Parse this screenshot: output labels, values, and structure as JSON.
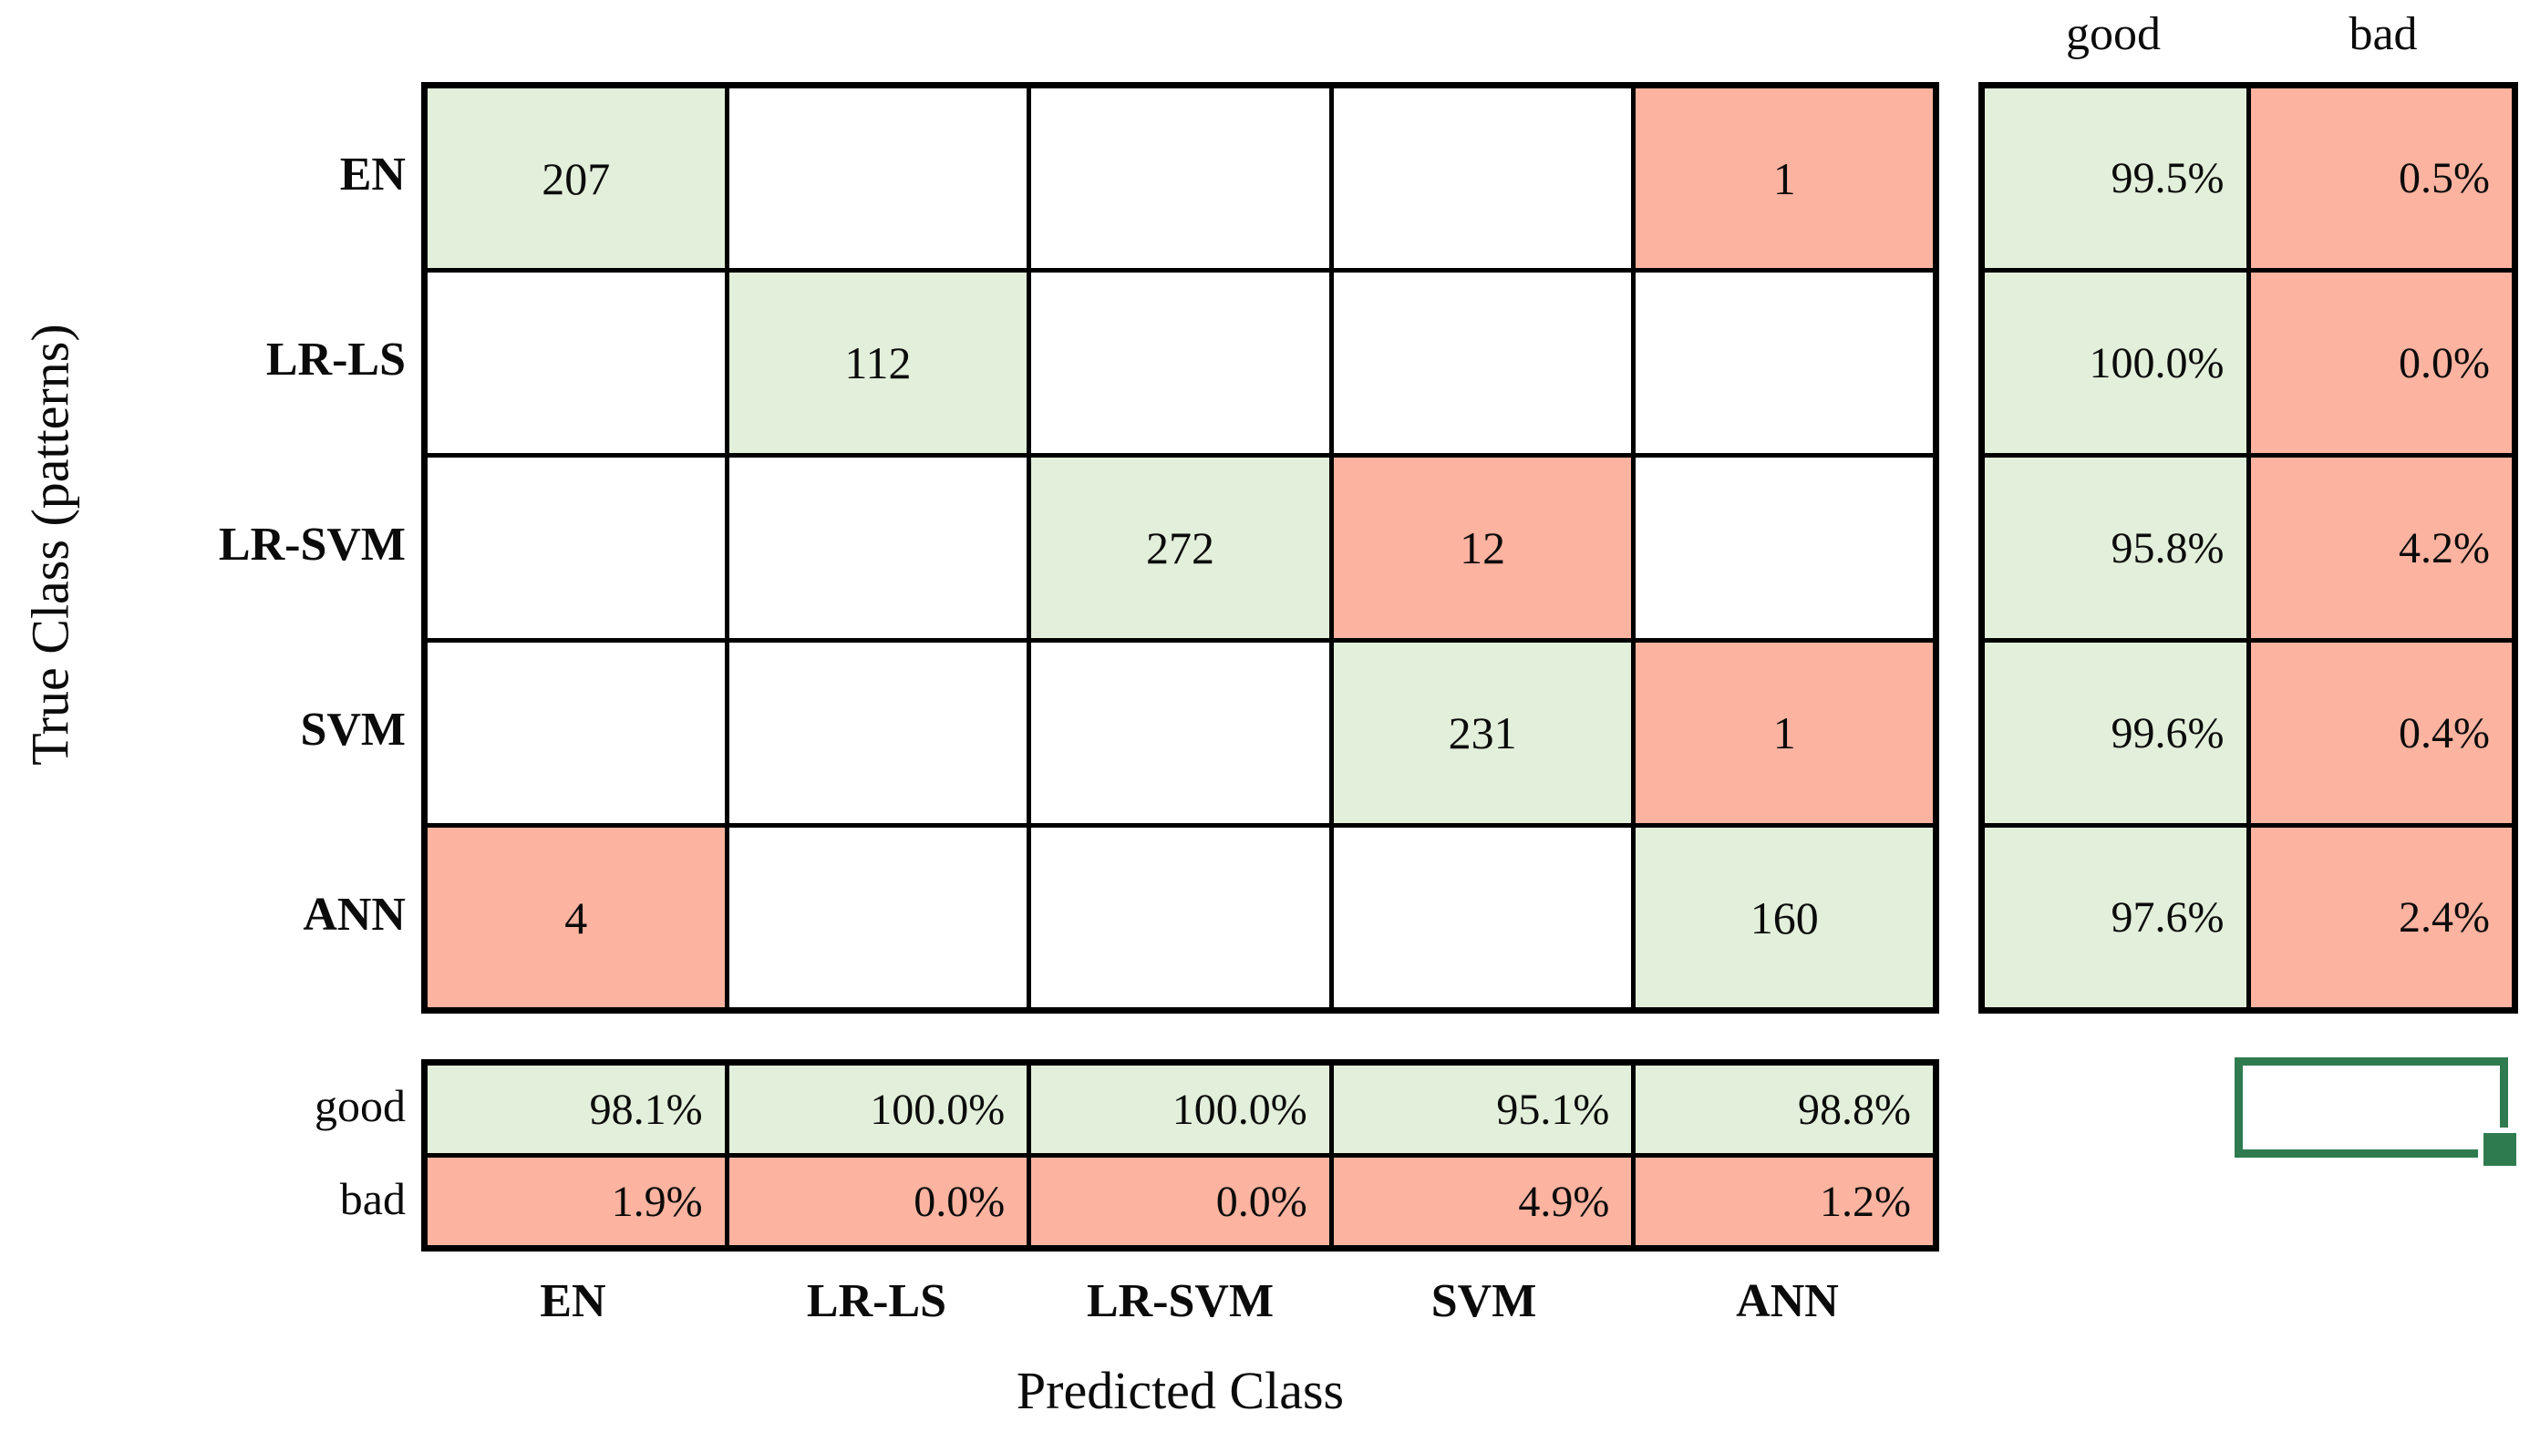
{
  "colors": {
    "good_bg": "#e2efda",
    "bad_bg": "#fcb3a0",
    "grid": "#000000",
    "selection": "#2e7b50"
  },
  "chart_data": {
    "type": "heatmap",
    "subtype": "confusion-matrix",
    "xlabel": "Predicted Class",
    "ylabel": "True Class (patterns)",
    "classes": [
      "EN",
      "LR-LS",
      "LR-SVM",
      "SVM",
      "ANN"
    ],
    "matrix": [
      [
        207,
        null,
        null,
        null,
        1
      ],
      [
        null,
        112,
        null,
        null,
        null
      ],
      [
        null,
        null,
        272,
        12,
        null
      ],
      [
        null,
        null,
        null,
        231,
        1
      ],
      [
        4,
        null,
        null,
        null,
        160
      ]
    ],
    "row_percentages": {
      "headers": [
        "good",
        "bad"
      ],
      "good": [
        "99.5%",
        "100.0%",
        "95.8%",
        "99.6%",
        "97.6%"
      ],
      "bad": [
        "0.5%",
        "0.0%",
        "4.2%",
        "0.4%",
        "2.4%"
      ]
    },
    "column_percentages": {
      "row_labels": [
        "good",
        "bad"
      ],
      "good": [
        "98.1%",
        "100.0%",
        "100.0%",
        "95.1%",
        "98.8%"
      ],
      "bad": [
        "1.9%",
        "0.0%",
        "0.0%",
        "4.9%",
        "1.2%"
      ]
    },
    "grid": true,
    "legend_position": "none"
  }
}
